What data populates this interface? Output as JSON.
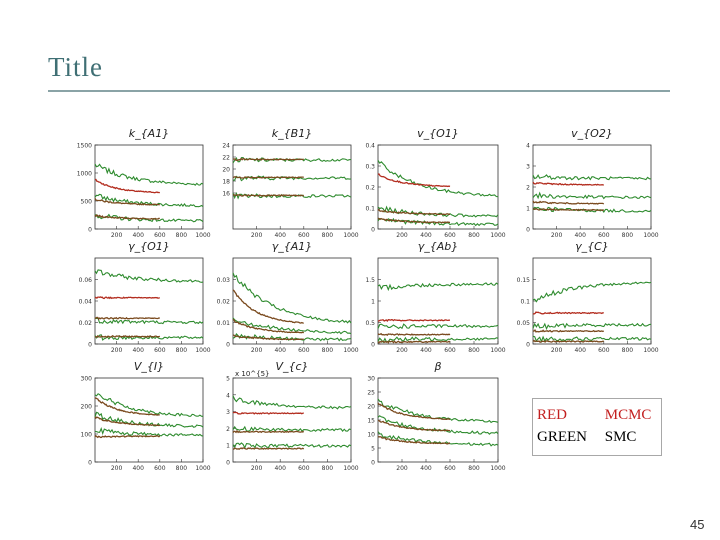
{
  "slide": {
    "title": "Title",
    "page_number": "45"
  },
  "legend": {
    "red_color": "RED",
    "red_method": "MCMC",
    "green_color": "GREEN",
    "green_method": "SMC"
  },
  "colors": {
    "red": "#b32d1f",
    "green": "#2e8b2e",
    "brown": "#7a4a1e",
    "title": "#3f6f74"
  },
  "chart_data": [
    {
      "type": "line",
      "title": "k_{A1}",
      "xlim": [
        0,
        1000
      ],
      "ylim": [
        0,
        1500
      ],
      "xticks": [
        "200",
        "400",
        "600",
        "800",
        "1000"
      ],
      "yticks": [
        "1500",
        "1000",
        "500",
        "0"
      ],
      "series": [
        {
          "name": "SMC",
          "color": "green",
          "start": 1150,
          "end": 780,
          "n": 1000
        },
        {
          "name": "MCMC",
          "color": "red",
          "start": 880,
          "end": 640,
          "n": 600
        },
        {
          "name": "SMC",
          "color": "green",
          "start": 600,
          "end": 410,
          "n": 1000
        },
        {
          "name": "MCMC",
          "color": "brown",
          "start": 530,
          "end": 430,
          "n": 600
        },
        {
          "name": "SMC",
          "color": "green",
          "start": 250,
          "end": 140,
          "n": 1000
        },
        {
          "name": "MCMC",
          "color": "brown",
          "start": 240,
          "end": 180,
          "n": 600
        }
      ]
    },
    {
      "type": "line",
      "title": "k_{B1}",
      "xlim": [
        0,
        1000
      ],
      "ylim": [
        10,
        24
      ],
      "xticks": [
        "200",
        "400",
        "600",
        "800",
        "1000"
      ],
      "yticks": [
        "24",
        "22",
        "20",
        "18",
        "16"
      ],
      "series": [
        {
          "name": "SMC",
          "color": "green",
          "start": 21.5,
          "end": 21.5,
          "n": 1000
        },
        {
          "name": "MCMC",
          "color": "brown",
          "start": 21.6,
          "end": 21.6,
          "n": 600
        },
        {
          "name": "SMC",
          "color": "green",
          "start": 18.5,
          "end": 18.5,
          "n": 1000
        },
        {
          "name": "MCMC",
          "color": "brown",
          "start": 18.6,
          "end": 18.6,
          "n": 600
        },
        {
          "name": "SMC",
          "color": "green",
          "start": 15.5,
          "end": 15.5,
          "n": 1000
        },
        {
          "name": "MCMC",
          "color": "brown",
          "start": 15.6,
          "end": 15.6,
          "n": 600
        }
      ]
    },
    {
      "type": "line",
      "title": "v_{O1}",
      "xlim": [
        0,
        1000
      ],
      "ylim": [
        0,
        0.4
      ],
      "xticks": [
        "200",
        "400",
        "600",
        "800",
        "1000"
      ],
      "yticks": [
        "0.4",
        "0.3",
        "0.2",
        "0.1",
        "0"
      ],
      "series": [
        {
          "name": "SMC",
          "color": "green",
          "start": 0.32,
          "end": 0.15,
          "n": 1000
        },
        {
          "name": "MCMC",
          "color": "red",
          "start": 0.26,
          "end": 0.2,
          "n": 600
        },
        {
          "name": "SMC",
          "color": "green",
          "start": 0.1,
          "end": 0.06,
          "n": 1000
        },
        {
          "name": "MCMC",
          "color": "brown",
          "start": 0.09,
          "end": 0.07,
          "n": 600
        },
        {
          "name": "SMC",
          "color": "green",
          "start": 0.05,
          "end": 0.02,
          "n": 1000
        },
        {
          "name": "MCMC",
          "color": "brown",
          "start": 0.05,
          "end": 0.03,
          "n": 600
        }
      ]
    },
    {
      "type": "line",
      "title": "v_{O2}",
      "xlim": [
        0,
        1000
      ],
      "ylim": [
        0,
        4
      ],
      "xticks": [
        "200",
        "400",
        "600",
        "800",
        "1000"
      ],
      "yticks": [
        "4",
        "3",
        "2",
        "1",
        "0"
      ],
      "series": [
        {
          "name": "SMC",
          "color": "green",
          "start": 2.5,
          "end": 2.4,
          "n": 1000
        },
        {
          "name": "MCMC",
          "color": "red",
          "start": 2.2,
          "end": 2.1,
          "n": 600
        },
        {
          "name": "SMC",
          "color": "green",
          "start": 1.6,
          "end": 1.5,
          "n": 1000
        },
        {
          "name": "MCMC",
          "color": "brown",
          "start": 1.3,
          "end": 1.2,
          "n": 600
        },
        {
          "name": "SMC",
          "color": "green",
          "start": 1.0,
          "end": 0.85,
          "n": 1000
        },
        {
          "name": "MCMC",
          "color": "brown",
          "start": 0.95,
          "end": 0.9,
          "n": 600
        }
      ]
    },
    {
      "type": "line",
      "title": "γ_{O1}",
      "xlim": [
        0,
        1000
      ],
      "ylim": [
        0,
        0.08
      ],
      "xticks": [
        "200",
        "400",
        "600",
        "800",
        "1000"
      ],
      "yticks": [
        "0.06",
        "0.04",
        "0.02",
        "0"
      ],
      "series": [
        {
          "name": "SMC",
          "color": "green",
          "start": 0.068,
          "end": 0.058,
          "n": 1000
        },
        {
          "name": "MCMC",
          "color": "red",
          "start": 0.043,
          "end": 0.043,
          "n": 600
        },
        {
          "name": "SMC",
          "color": "green",
          "start": 0.022,
          "end": 0.02,
          "n": 1000
        },
        {
          "name": "MCMC",
          "color": "brown",
          "start": 0.024,
          "end": 0.024,
          "n": 600
        },
        {
          "name": "SMC",
          "color": "green",
          "start": 0.006,
          "end": 0.006,
          "n": 1000
        },
        {
          "name": "MCMC",
          "color": "brown",
          "start": 0.007,
          "end": 0.007,
          "n": 600
        }
      ]
    },
    {
      "type": "line",
      "title": "γ_{A1}",
      "xlim": [
        0,
        1000
      ],
      "ylim": [
        0,
        0.04
      ],
      "xticks": [
        "200",
        "400",
        "600",
        "800",
        "1000"
      ],
      "yticks": [
        "0.03",
        "0.02",
        "0.01",
        "0"
      ],
      "series": [
        {
          "name": "SMC",
          "color": "green",
          "start": 0.033,
          "end": 0.009,
          "n": 1000
        },
        {
          "name": "MCMC",
          "color": "brown",
          "start": 0.025,
          "end": 0.009,
          "n": 600
        },
        {
          "name": "SMC",
          "color": "green",
          "start": 0.012,
          "end": 0.005,
          "n": 1000
        },
        {
          "name": "MCMC",
          "color": "brown",
          "start": 0.011,
          "end": 0.005,
          "n": 600
        },
        {
          "name": "SMC",
          "color": "green",
          "start": 0.004,
          "end": 0.002,
          "n": 1000
        },
        {
          "name": "MCMC",
          "color": "brown",
          "start": 0.004,
          "end": 0.002,
          "n": 600
        }
      ]
    },
    {
      "type": "line",
      "title": "γ_{Ab}",
      "xlim": [
        0,
        1000
      ],
      "ylim": [
        0,
        2
      ],
      "xticks": [
        "200",
        "400",
        "600",
        "800",
        "1000"
      ],
      "yticks": [
        "1.5",
        "1",
        "0.5",
        "0"
      ],
      "series": [
        {
          "name": "SMC",
          "color": "green",
          "start": 1.3,
          "end": 1.4,
          "n": 1000
        },
        {
          "name": "MCMC",
          "color": "red",
          "start": 0.55,
          "end": 0.55,
          "n": 600
        },
        {
          "name": "SMC",
          "color": "green",
          "start": 0.4,
          "end": 0.42,
          "n": 1000
        },
        {
          "name": "MCMC",
          "color": "brown",
          "start": 0.22,
          "end": 0.22,
          "n": 600
        },
        {
          "name": "SMC",
          "color": "green",
          "start": 0.1,
          "end": 0.12,
          "n": 1000
        },
        {
          "name": "MCMC",
          "color": "brown",
          "start": 0.05,
          "end": 0.05,
          "n": 600
        }
      ]
    },
    {
      "type": "line",
      "title": "γ_{C}",
      "xlim": [
        0,
        1000
      ],
      "ylim": [
        0,
        0.2
      ],
      "xticks": [
        "200",
        "400",
        "600",
        "800",
        "1000"
      ],
      "yticks": [
        "0.15",
        "0.1",
        "0.05",
        "0"
      ],
      "series": [
        {
          "name": "SMC",
          "color": "green",
          "start": 0.1,
          "end": 0.145,
          "n": 1000
        },
        {
          "name": "MCMC",
          "color": "red",
          "start": 0.072,
          "end": 0.072,
          "n": 600
        },
        {
          "name": "SMC",
          "color": "green",
          "start": 0.04,
          "end": 0.045,
          "n": 1000
        },
        {
          "name": "MCMC",
          "color": "brown",
          "start": 0.03,
          "end": 0.03,
          "n": 600
        },
        {
          "name": "SMC",
          "color": "green",
          "start": 0.012,
          "end": 0.012,
          "n": 1000
        },
        {
          "name": "MCMC",
          "color": "brown",
          "start": 0.006,
          "end": 0.006,
          "n": 600
        }
      ]
    },
    {
      "type": "line",
      "title": "V_{I}",
      "xlim": [
        0,
        1000
      ],
      "ylim": [
        0,
        300
      ],
      "xticks": [
        "200",
        "400",
        "600",
        "800",
        "1000"
      ],
      "yticks": [
        "300",
        "200",
        "100",
        "0"
      ],
      "series": [
        {
          "name": "SMC",
          "color": "green",
          "start": 250,
          "end": 160,
          "n": 1000
        },
        {
          "name": "MCMC",
          "color": "brown",
          "start": 230,
          "end": 165,
          "n": 600
        },
        {
          "name": "SMC",
          "color": "green",
          "start": 170,
          "end": 125,
          "n": 1000
        },
        {
          "name": "MCMC",
          "color": "brown",
          "start": 160,
          "end": 130,
          "n": 600
        },
        {
          "name": "SMC",
          "color": "green",
          "start": 115,
          "end": 95,
          "n": 1000
        },
        {
          "name": "MCMC",
          "color": "brown",
          "start": 90,
          "end": 92,
          "n": 600
        }
      ]
    },
    {
      "type": "line",
      "title": "V_{c}",
      "exponent": "x 10^{5}",
      "xlim": [
        0,
        1000
      ],
      "ylim": [
        0,
        5
      ],
      "xticks": [
        "200",
        "400",
        "600",
        "800",
        "1000"
      ],
      "yticks": [
        "5",
        "4",
        "3",
        "2",
        "1",
        "0"
      ],
      "series": [
        {
          "name": "SMC",
          "color": "green",
          "start": 3.8,
          "end": 3.2,
          "n": 1000
        },
        {
          "name": "MCMC",
          "color": "red",
          "start": 2.9,
          "end": 2.9,
          "n": 600
        },
        {
          "name": "SMC",
          "color": "green",
          "start": 2.0,
          "end": 1.9,
          "n": 1000
        },
        {
          "name": "MCMC",
          "color": "brown",
          "start": 1.8,
          "end": 1.8,
          "n": 600
        },
        {
          "name": "SMC",
          "color": "green",
          "start": 1.0,
          "end": 0.95,
          "n": 1000
        },
        {
          "name": "MCMC",
          "color": "brown",
          "start": 0.8,
          "end": 0.8,
          "n": 600
        }
      ]
    },
    {
      "type": "line",
      "title": "β",
      "xlim": [
        0,
        1000
      ],
      "ylim": [
        0,
        30
      ],
      "xticks": [
        "200",
        "400",
        "600",
        "800",
        "1000"
      ],
      "yticks": [
        "30",
        "25",
        "20",
        "15",
        "10",
        "5",
        "0"
      ],
      "series": [
        {
          "name": "SMC",
          "color": "green",
          "start": 22,
          "end": 14,
          "n": 1000
        },
        {
          "name": "MCMC",
          "color": "brown",
          "start": 21,
          "end": 15,
          "n": 600
        },
        {
          "name": "SMC",
          "color": "green",
          "start": 16,
          "end": 10,
          "n": 1000
        },
        {
          "name": "MCMC",
          "color": "brown",
          "start": 15,
          "end": 11,
          "n": 600
        },
        {
          "name": "SMC",
          "color": "green",
          "start": 10,
          "end": 6,
          "n": 1000
        },
        {
          "name": "MCMC",
          "color": "brown",
          "start": 9,
          "end": 6.5,
          "n": 600
        }
      ]
    }
  ]
}
